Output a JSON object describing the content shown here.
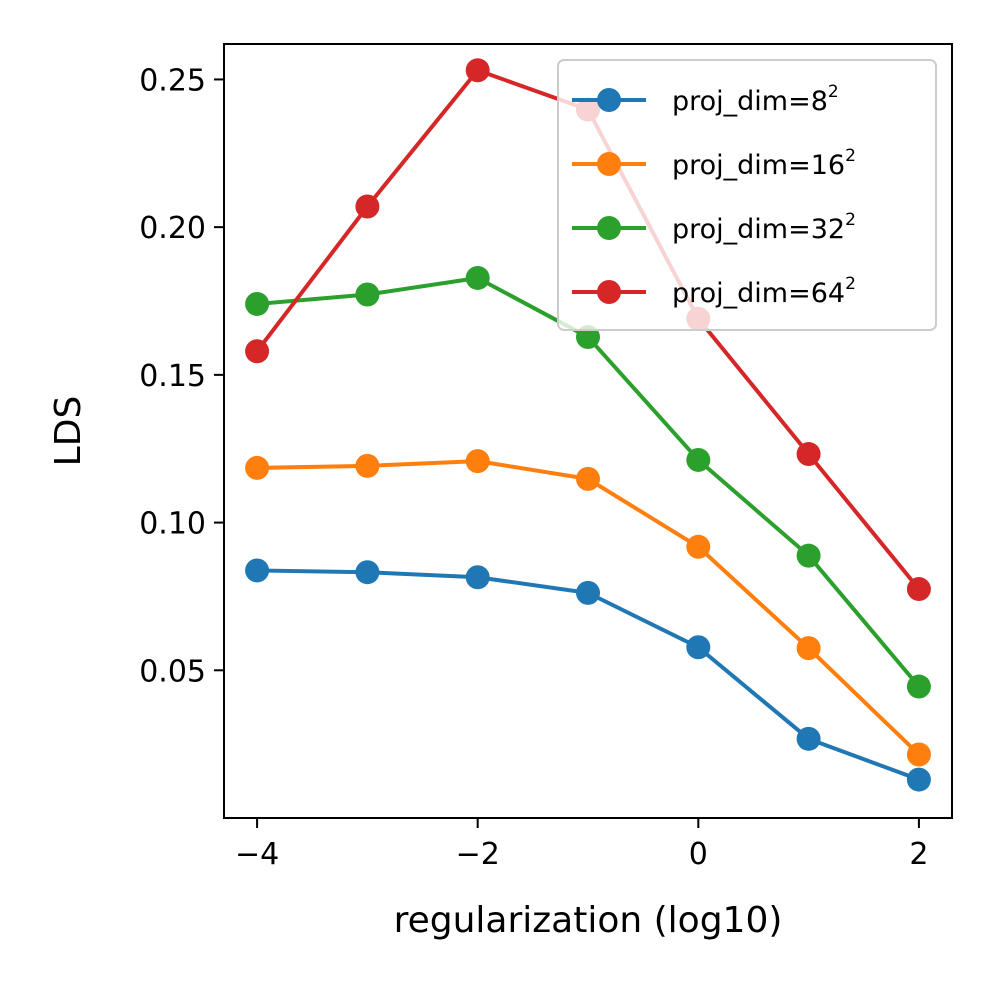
{
  "chart_data": {
    "type": "line",
    "title": "",
    "xlabel": "regularization (log10)",
    "ylabel": "LDS",
    "x": [
      -4,
      -3,
      -2,
      -1,
      0,
      1,
      2
    ],
    "xlim": [
      -4.3,
      2.3
    ],
    "ylim": [
      0.0,
      0.262
    ],
    "x_ticks": [
      -4,
      -2,
      0,
      2
    ],
    "x_tick_labels": [
      "−4",
      "−2",
      "0",
      "2"
    ],
    "y_ticks": [
      0.05,
      0.1,
      0.15,
      0.2,
      0.25
    ],
    "y_tick_labels": [
      "0.05",
      "0.10",
      "0.15",
      "0.20",
      "0.25"
    ],
    "grid": false,
    "legend_position": "top-right",
    "series": [
      {
        "name_base": "proj_dim=8",
        "name_sup": "2",
        "color": "#1f77b4",
        "values": [
          0.0838,
          0.0832,
          0.0815,
          0.0762,
          0.0578,
          0.0268,
          0.013
        ]
      },
      {
        "name_base": "proj_dim=16",
        "name_sup": "2",
        "color": "#ff7f0e",
        "values": [
          0.1185,
          0.1192,
          0.1208,
          0.1148,
          0.0918,
          0.0575,
          0.0215
        ]
      },
      {
        "name_base": "proj_dim=32",
        "name_sup": "2",
        "color": "#2ca02c",
        "values": [
          0.174,
          0.1772,
          0.1828,
          0.1628,
          0.1212,
          0.0888,
          0.0445
        ]
      },
      {
        "name_base": "proj_dim=64",
        "name_sup": "2",
        "color": "#d62728",
        "values": [
          0.158,
          0.207,
          0.2531,
          0.2398,
          0.169,
          0.1232,
          0.0775
        ]
      }
    ]
  }
}
